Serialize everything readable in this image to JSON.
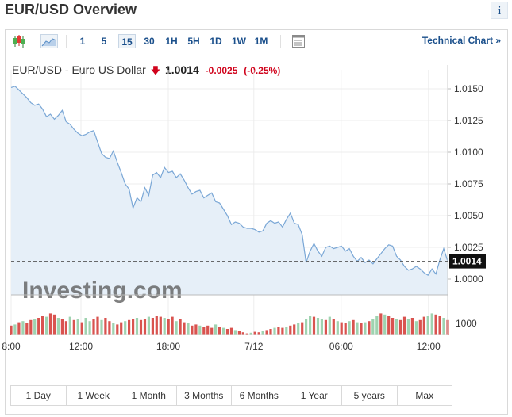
{
  "header": {
    "title": "EUR/USD Overview",
    "info_label": "i"
  },
  "toolbar": {
    "intervals": [
      "1",
      "5",
      "15",
      "30",
      "1H",
      "5H",
      "1D",
      "1W",
      "1M"
    ],
    "selected_interval": "15",
    "technical_chart_label": "Technical Chart »"
  },
  "quote": {
    "name": "EUR/USD - Euro US Dollar",
    "last": "1.0014",
    "change": "-0.0025",
    "change_pct": "(-0.25%)",
    "direction": "down"
  },
  "colors": {
    "line": "#7aa7d6",
    "area": "#e6eff8",
    "down_bar": "#d9534f",
    "up_bar": "#9fd3b0",
    "accent": "#1a4f8b",
    "negative": "#d0021b"
  },
  "chart_data": {
    "type": "area",
    "y_ticks": [
      "1.0150",
      "1.0125",
      "1.0100",
      "1.0075",
      "1.0050",
      "1.0025",
      "1.0000"
    ],
    "ylim": [
      0.99875,
      1.0165
    ],
    "volume_label": "1000",
    "x_tick_labels": [
      "8:00",
      "12:00",
      "18:00",
      "7/12",
      "06:00",
      "12:00"
    ],
    "current_price_label": "1.0014",
    "price": [
      1.0151,
      1.0152,
      1.0149,
      1.0146,
      1.0143,
      1.0139,
      1.0137,
      1.0138,
      1.0134,
      1.0128,
      1.013,
      1.0126,
      1.0129,
      1.0133,
      1.0124,
      1.0122,
      1.0118,
      1.0115,
      1.0113,
      1.0114,
      1.0116,
      1.0117,
      1.0108,
      1.0099,
      1.0096,
      1.0095,
      1.0101,
      1.0092,
      1.0084,
      1.0075,
      1.0071,
      1.0056,
      1.0064,
      1.0061,
      1.0072,
      1.0066,
      1.0082,
      1.0084,
      1.008,
      1.0088,
      1.0084,
      1.0085,
      1.008,
      1.0083,
      1.0078,
      1.0072,
      1.0067,
      1.0069,
      1.007,
      1.0064,
      1.0066,
      1.0068,
      1.0061,
      1.006,
      1.0055,
      1.005,
      1.0043,
      1.0045,
      1.0044,
      1.0041,
      1.004,
      1.004,
      1.0039,
      1.0037,
      1.0038,
      1.0044,
      1.0046,
      1.0044,
      1.0045,
      1.0041,
      1.0047,
      1.0052,
      1.0044,
      1.0043,
      1.0035,
      1.0013,
      1.0022,
      1.0028,
      1.0022,
      1.0018,
      1.0025,
      1.0026,
      1.0024,
      1.0025,
      1.0026,
      1.0022,
      1.0024,
      1.0018,
      1.0014,
      1.0017,
      1.0013,
      1.0015,
      1.0012,
      1.0016,
      1.002,
      1.0024,
      1.0027,
      1.0026,
      1.0018,
      1.0015,
      1.001,
      1.0007,
      1.0008,
      1.001,
      1.0008,
      1.0005,
      1.0003,
      1.0008,
      1.0004,
      1.0015,
      1.0024,
      1.0014
    ],
    "volume": [
      0.4,
      0.45,
      0.55,
      0.6,
      0.5,
      0.65,
      0.7,
      0.75,
      0.85,
      0.8,
      0.95,
      0.9,
      0.75,
      0.7,
      0.6,
      0.8,
      0.65,
      0.7,
      0.55,
      0.75,
      0.6,
      0.7,
      0.8,
      0.65,
      0.75,
      0.6,
      0.5,
      0.45,
      0.55,
      0.6,
      0.65,
      0.7,
      0.75,
      0.65,
      0.7,
      0.8,
      0.75,
      0.85,
      0.8,
      0.75,
      0.7,
      0.8,
      0.6,
      0.7,
      0.55,
      0.5,
      0.4,
      0.45,
      0.4,
      0.35,
      0.4,
      0.3,
      0.45,
      0.35,
      0.3,
      0.25,
      0.3,
      0.2,
      0.15,
      0.1,
      0.05,
      0.08,
      0.12,
      0.1,
      0.15,
      0.2,
      0.25,
      0.3,
      0.35,
      0.3,
      0.35,
      0.4,
      0.45,
      0.5,
      0.55,
      0.7,
      0.85,
      0.8,
      0.75,
      0.7,
      0.65,
      0.8,
      0.7,
      0.6,
      0.55,
      0.5,
      0.6,
      0.65,
      0.55,
      0.5,
      0.55,
      0.6,
      0.7,
      0.85,
      0.95,
      0.9,
      0.85,
      0.75,
      0.7,
      0.65,
      0.8,
      0.7,
      0.75,
      0.6,
      0.65,
      0.8,
      0.85,
      0.95,
      0.9,
      0.85,
      0.75,
      0.65
    ],
    "volume_up": [
      false,
      true,
      false,
      true,
      false,
      false,
      true,
      false,
      false,
      true,
      false,
      false,
      true,
      false,
      false,
      true,
      false,
      true,
      false,
      true,
      true,
      false,
      false,
      true,
      false,
      false,
      true,
      false,
      false,
      true,
      false,
      false,
      true,
      false,
      false,
      true,
      false,
      false,
      false,
      true,
      false,
      false,
      true,
      false,
      false,
      true,
      false,
      false,
      true,
      false,
      false,
      false,
      true,
      false,
      true,
      false,
      false,
      true,
      false,
      false,
      false,
      true,
      false,
      false,
      true,
      false,
      false,
      true,
      false,
      false,
      true,
      false,
      false,
      true,
      false,
      true,
      true,
      false,
      true,
      true,
      false,
      true,
      false,
      true,
      false,
      false,
      true,
      false,
      true,
      false,
      true,
      false,
      true,
      true,
      false,
      true,
      false,
      false,
      true,
      false,
      false,
      true,
      false,
      true,
      false,
      false,
      true,
      true,
      false,
      false,
      true,
      false
    ],
    "grid": true,
    "watermark": "Investing.com"
  },
  "range_buttons": [
    "1 Day",
    "1 Week",
    "1 Month",
    "3 Months",
    "6 Months",
    "1 Year",
    "5 years",
    "Max"
  ]
}
